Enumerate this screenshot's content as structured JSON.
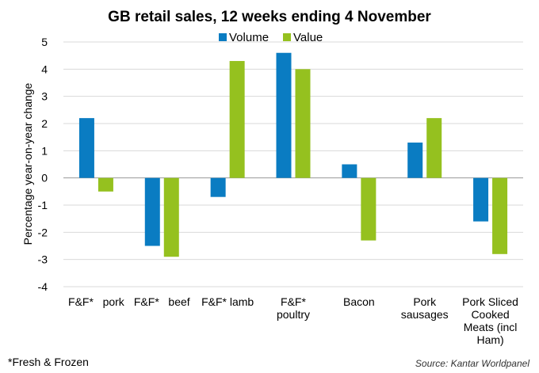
{
  "chart_data": {
    "type": "bar",
    "title": "GB retail sales, 12 weeks ending 4 November",
    "ylabel": "Percentage year-on-year  change",
    "xlabel": "",
    "ylim": [
      -4,
      5
    ],
    "yticks": [
      5,
      4,
      3,
      2,
      1,
      0,
      -1,
      -2,
      -3,
      -4
    ],
    "grid": true,
    "legend_position": "top-center",
    "categories": [
      "F&F*   pork",
      "F&F*   beef",
      "F&F* lamb",
      "F&F* poultry",
      "Bacon",
      "Pork sausages",
      "Pork Sliced Cooked Meats (incl Ham)"
    ],
    "category_lines": [
      [
        "F&F*   pork"
      ],
      [
        "F&F*   beef"
      ],
      [
        "F&F* lamb"
      ],
      [
        "F&F*",
        "poultry"
      ],
      [
        "Bacon"
      ],
      [
        "Pork",
        "sausages"
      ],
      [
        "Pork Sliced",
        "Cooked",
        "Meats (incl",
        "Ham)"
      ]
    ],
    "series": [
      {
        "name": "Volume",
        "color": "#0a7cc2",
        "values": [
          2.2,
          -2.5,
          -0.7,
          4.6,
          0.5,
          1.3,
          -1.6
        ]
      },
      {
        "name": "Value",
        "color": "#95c11f",
        "values": [
          -0.5,
          -2.9,
          4.3,
          4.0,
          -2.3,
          2.2,
          -2.8
        ]
      }
    ]
  },
  "footnote": "*Fresh & Frozen",
  "source": "Source: Kantar Worldpanel"
}
